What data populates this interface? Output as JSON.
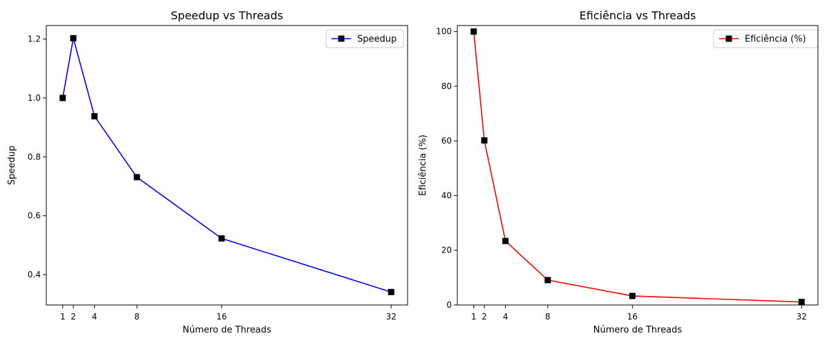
{
  "chart_data": [
    {
      "type": "line",
      "title": "Speedup vs Threads",
      "xlabel": "Número de Threads",
      "ylabel": "Speedup",
      "x": [
        1,
        2,
        4,
        8,
        16,
        32
      ],
      "xticks": [
        1,
        2,
        4,
        8,
        16,
        32
      ],
      "xlim": [
        -0.55,
        33.55
      ],
      "ylim": [
        0.297,
        1.246
      ],
      "yticks": [
        0.4,
        0.6,
        0.8,
        1.0,
        1.2
      ],
      "ytick_labels": [
        "0.4",
        "0.6",
        "0.8",
        "1.0",
        "1.2"
      ],
      "grid": false,
      "legend_position": "upper right",
      "series": [
        {
          "name": "Speedup",
          "color": "#0000ff",
          "marker": "square",
          "marker_color": "#000000",
          "values": [
            1.0,
            1.203,
            0.938,
            0.731,
            0.523,
            0.341
          ]
        }
      ]
    },
    {
      "type": "line",
      "title": "Eficiência vs Threads",
      "xlabel": "Número de Threads",
      "ylabel": "Eficiência (%)",
      "x": [
        1,
        2,
        4,
        8,
        16,
        32
      ],
      "xticks": [
        1,
        2,
        4,
        8,
        16,
        32
      ],
      "xlim": [
        -0.55,
        33.55
      ],
      "ylim": [
        0,
        102.2
      ],
      "yticks": [
        0,
        20,
        40,
        60,
        80,
        100
      ],
      "ytick_labels": [
        "0",
        "20",
        "40",
        "60",
        "80",
        "100"
      ],
      "grid": false,
      "legend_position": "upper right",
      "series": [
        {
          "name": "Eficiência (%)",
          "color": "#ff0000",
          "marker": "square",
          "marker_color": "#000000",
          "values": [
            100.0,
            60.2,
            23.4,
            9.1,
            3.3,
            1.1
          ]
        }
      ]
    }
  ]
}
